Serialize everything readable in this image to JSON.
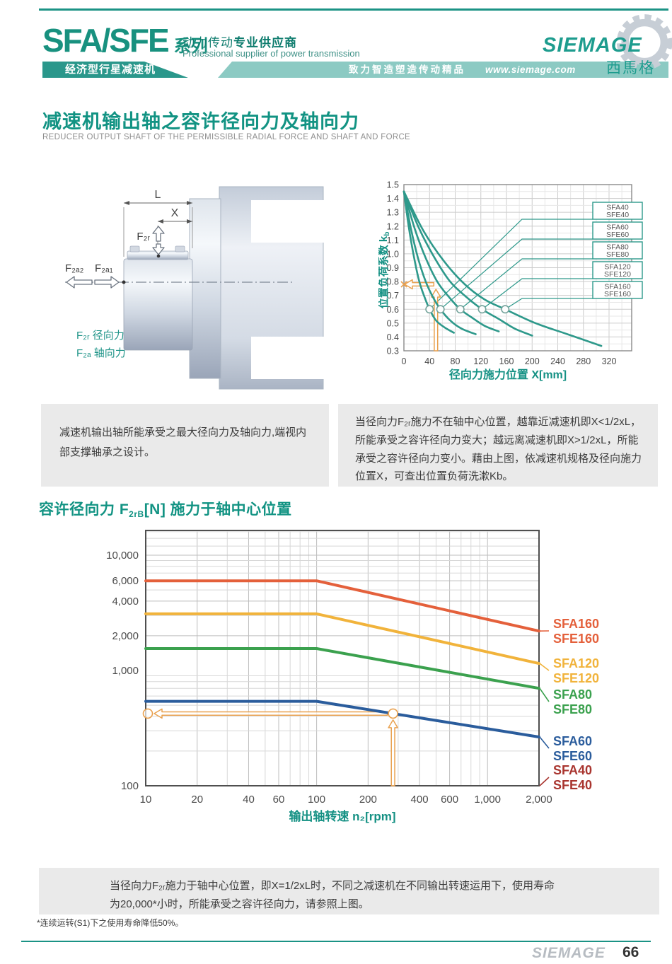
{
  "header": {
    "series_name": "SFA/SFE",
    "series_suffix": "系列",
    "tagline_cn_light": "动力传动",
    "tagline_cn_bold": "专业供应商",
    "tagline_en": "Professional supplier of power transmission",
    "banner_left": "经济型行星减速机",
    "banner_slogan": "致力智造塑造传动精品",
    "banner_url": "www.siemage.com",
    "logo_text": "SIEMAGE",
    "logo_cn": "西馬格"
  },
  "section1": {
    "title": "减速机输出轴之容许径向力及轴向力",
    "subtitle": "REDUCER OUTPUT SHAFT OF THE PERMISSIBLE RADIAL FORCE AND SHAFT AND FORCE"
  },
  "diagram": {
    "dim_l": "L",
    "dim_x": "X",
    "f2r": "F₂ᵣ",
    "f2a2": "F₂ₐ₂",
    "f2a1": "F₂ₐ₁",
    "legend_radial": "F₂ᵣ 径向力",
    "legend_axial": "F₂ₐ 轴向力"
  },
  "note_left": "减速机输出轴所能承受之最大径向力及轴向力,端视内部支撑轴承之设计。",
  "note_right": "当径向力F₂ᵣ施力不在轴中心位置，越靠近减速机即X<1/2xL，所能承受之容许径向力变大；越远离减速机即X>1/2xL，所能承受之容许径向力变小。藉由上图，依减速机规格及径向施力位置X，可查出位置负荷洗漱Kb。",
  "section2": {
    "prefix": "容许径向力 ",
    "f": "F",
    "f_sub": "2rB",
    "rest": "[N] 施力于轴中心位置"
  },
  "bottom_note_line1": "当径向力F₂ᵣ施力于轴中心位置，即X=1/2xL时，不同之减速机在不同输出转速运用下，使用寿命",
  "bottom_note_line2": "为20,000*小时，所能承受之容许径向力，请参照上图。",
  "footnote": "*连续运转(S1)下之使用寿命降低50%。",
  "footer": {
    "brand": "SIEMAGE",
    "page": "66"
  },
  "colors": {
    "brand_teal": "#129383",
    "curve_teal": "#2e998b",
    "annotation_orange": "#e9a14f"
  },
  "chart_data": [
    {
      "type": "line",
      "title": "",
      "xlabel": "径向力施力位置 X[mm]",
      "ylabel_main": "位置负荷系数 k",
      "ylabel_sub": "b",
      "xlim": [
        0,
        355
      ],
      "ylim": [
        0.3,
        1.5
      ],
      "xticks": [
        0,
        40,
        80,
        120,
        160,
        200,
        240,
        280,
        320
      ],
      "yticks": [
        1.5,
        1.4,
        1.3,
        1.2,
        1.1,
        1.0,
        0.9,
        0.8,
        0.7,
        0.6,
        0.5,
        0.4,
        0.3
      ],
      "grid": true,
      "legend_position": "right-boxes",
      "line_color": "#2e998b",
      "series": [
        {
          "label_lines": [
            "SFA40",
            "SFE40"
          ],
          "points": [
            [
              0,
              1.45
            ],
            [
              8,
              1.18
            ],
            [
              16,
              0.97
            ],
            [
              24,
              0.8
            ],
            [
              32,
              0.69
            ],
            [
              40,
              0.6
            ],
            [
              50,
              0.52
            ],
            [
              63,
              0.47
            ],
            [
              78,
              0.43
            ]
          ],
          "marker": [
            40,
            0.6
          ]
        },
        {
          "label_lines": [
            "SFA60",
            "SFE60"
          ],
          "points": [
            [
              0,
              1.45
            ],
            [
              11,
              1.18
            ],
            [
              22,
              0.97
            ],
            [
              34,
              0.8
            ],
            [
              45,
              0.69
            ],
            [
              57,
              0.6
            ],
            [
              72,
              0.52
            ],
            [
              90,
              0.46
            ],
            [
              112,
              0.42
            ]
          ],
          "marker": [
            57,
            0.6
          ]
        },
        {
          "label_lines": [
            "SFA80",
            "SFE80"
          ],
          "points": [
            [
              0,
              1.45
            ],
            [
              17,
              1.18
            ],
            [
              34,
              0.97
            ],
            [
              52,
              0.8
            ],
            [
              70,
              0.69
            ],
            [
              88,
              0.6
            ],
            [
              106,
              0.54
            ],
            [
              126,
              0.48
            ],
            [
              148,
              0.44
            ]
          ],
          "marker": [
            88,
            0.6
          ]
        },
        {
          "label_lines": [
            "SFA120",
            "SFE120"
          ],
          "points": [
            [
              0,
              1.45
            ],
            [
              24,
              1.18
            ],
            [
              48,
              0.97
            ],
            [
              72,
              0.8
            ],
            [
              97,
              0.69
            ],
            [
              122,
              0.6
            ],
            [
              148,
              0.53
            ],
            [
              173,
              0.46
            ],
            [
              200,
              0.41
            ]
          ],
          "marker": [
            122,
            0.6
          ]
        },
        {
          "label_lines": [
            "SFA160",
            "SFE160"
          ],
          "points": [
            [
              0,
              1.45
            ],
            [
              30,
              1.17
            ],
            [
              62,
              0.95
            ],
            [
              95,
              0.78
            ],
            [
              126,
              0.67
            ],
            [
              158,
              0.6
            ],
            [
              205,
              0.5
            ],
            [
              255,
              0.42
            ],
            [
              308,
              0.335
            ]
          ],
          "marker": [
            158,
            0.6
          ]
        }
      ],
      "annotation": {
        "x_mm": 50,
        "kb": 0.78,
        "color": "#e9a14f"
      }
    },
    {
      "type": "line",
      "xscale": "log",
      "yscale": "log",
      "title": "",
      "xlabel": "输出轴转速 n₂[rpm]",
      "xlim": [
        10,
        2000
      ],
      "ylim": [
        100,
        16000
      ],
      "grid": true,
      "xticks": [
        {
          "v": 10,
          "l": "10"
        },
        {
          "v": 20,
          "l": "20"
        },
        {
          "v": 40,
          "l": "40"
        },
        {
          "v": 60,
          "l": "60"
        },
        {
          "v": 100,
          "l": "100"
        },
        {
          "v": 200,
          "l": "200"
        },
        {
          "v": 400,
          "l": "400"
        },
        {
          "v": 600,
          "l": "600"
        },
        {
          "v": 1000,
          "l": "1,000"
        },
        {
          "v": 2000,
          "l": "2,000"
        }
      ],
      "yticks": [
        {
          "v": 100,
          "l": "100"
        },
        {
          "v": 1000,
          "l": "1,000"
        },
        {
          "v": 2000,
          "l": "2,000"
        },
        {
          "v": 4000,
          "l": "4,000"
        },
        {
          "v": 6000,
          "l": "6,000"
        },
        {
          "v": 10000,
          "l": "10,000"
        }
      ],
      "series": [
        {
          "label_lines": [
            "SFA160",
            "SFE160"
          ],
          "color": "#e4603b",
          "points": [
            [
              10,
              6000
            ],
            [
              100,
              6000
            ],
            [
              2000,
              2200
            ]
          ]
        },
        {
          "label_lines": [
            "SFA120",
            "SFE120"
          ],
          "color": "#f1b33b",
          "points": [
            [
              10,
              3100
            ],
            [
              100,
              3100
            ],
            [
              2000,
              1150
            ]
          ]
        },
        {
          "label_lines": [
            "SFA80",
            "SFE80"
          ],
          "color": "#3ba14e",
          "points": [
            [
              10,
              1550
            ],
            [
              100,
              1550
            ],
            [
              2000,
              700
            ]
          ]
        },
        {
          "label_lines": [
            "SFA60",
            "SFE60"
          ],
          "color": "#2a5c9c",
          "points": [
            [
              10,
              540
            ],
            [
              100,
              540
            ],
            [
              2000,
              265
            ]
          ]
        },
        {
          "label_lines": [
            "SFA40",
            "SFE40"
          ],
          "color": "#a9352f",
          "points": []
        }
      ],
      "annotation": {
        "speed": 280,
        "force": 423,
        "color": "#e9a14f"
      }
    }
  ]
}
